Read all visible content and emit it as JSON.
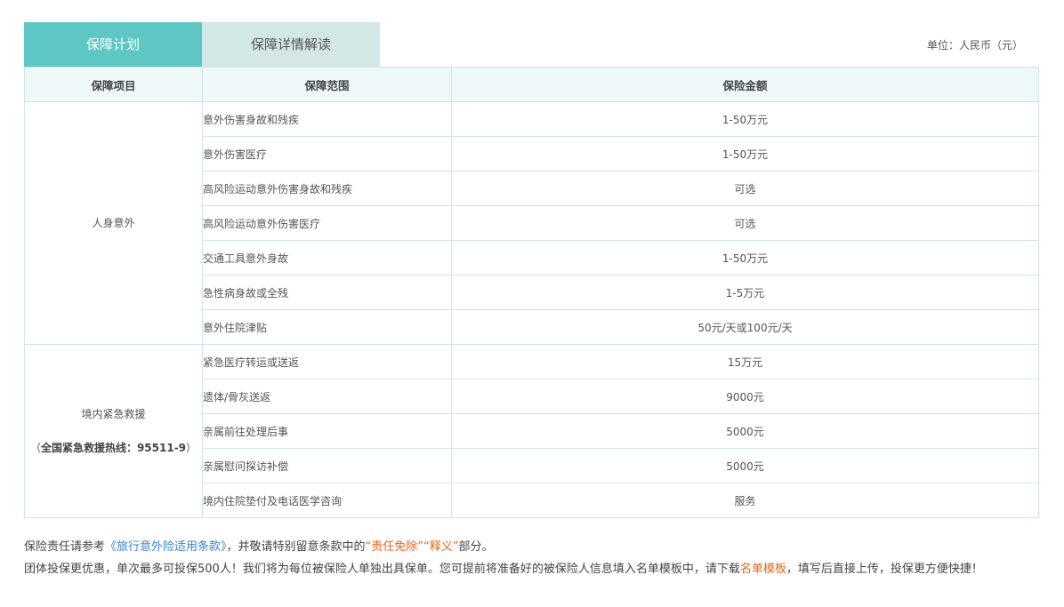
{
  "tabs": [
    {
      "label": "保障计划",
      "active": true
    },
    {
      "label": "保障详情解读",
      "active": false
    }
  ],
  "unit_label": "单位：人民币（元）",
  "table": {
    "headers": [
      "保障项目",
      "保障范围",
      "保险金额"
    ],
    "groups": [
      {
        "category": "人身意外",
        "rows": [
          {
            "scope": "意外伤害身故和残疾",
            "amount": "1-50万元"
          },
          {
            "scope": "意外伤害医疗",
            "amount": "1-50万元"
          },
          {
            "scope": "高风险运动意外伤害身故和残疾",
            "amount": "可选"
          },
          {
            "scope": "高风险运动意外伤害医疗",
            "amount": "可选"
          },
          {
            "scope": "交通工具意外身故",
            "amount": "1-50万元"
          },
          {
            "scope": "急性病身故或全残",
            "amount": "1-5万元"
          },
          {
            "scope": "意外住院津贴",
            "amount": "50元/天或100元/天"
          }
        ]
      },
      {
        "category": "境内紧急救援",
        "hotline_prefix": "（",
        "hotline_bold": "全国紧急救援热线：95511-9",
        "hotline_suffix": "）",
        "rows": [
          {
            "scope": "紧急医疗转运或送返",
            "amount": "15万元"
          },
          {
            "scope": "遗体/骨灰送返",
            "amount": "9000元"
          },
          {
            "scope": "亲属前往处理后事",
            "amount": "5000元"
          },
          {
            "scope": "亲属慰问探访补偿",
            "amount": "5000元"
          },
          {
            "scope": "境内住院垫付及电话医学咨询",
            "amount": "服务"
          }
        ]
      }
    ]
  },
  "notes": {
    "line1_prefix": "保险责任请参考",
    "terms_link": "《旅行意外险适用条款》",
    "line1_middle": "，并敬请特别留意条款中的",
    "exemption_link": "“责任免除”",
    "interpretation_link": "“释义”",
    "line1_suffix": "部分。",
    "line2_prefix": "团体投保更优惠，单次最多可投保500人！我们将为每位被保险人单独出具保单。您可提前将准备好的被保险人信息填入名单模板中，请下载",
    "template_link": "名单模板",
    "line2_suffix": "，填写后直接上传，投保更方便快捷！"
  },
  "colors": {
    "tab_active_bg": "#5ec6c3",
    "tab_inactive_bg": "#d3e7e6",
    "header_bg": "#eef8f8",
    "link_blue": "#3a84c9",
    "link_orange": "#e8641b"
  }
}
